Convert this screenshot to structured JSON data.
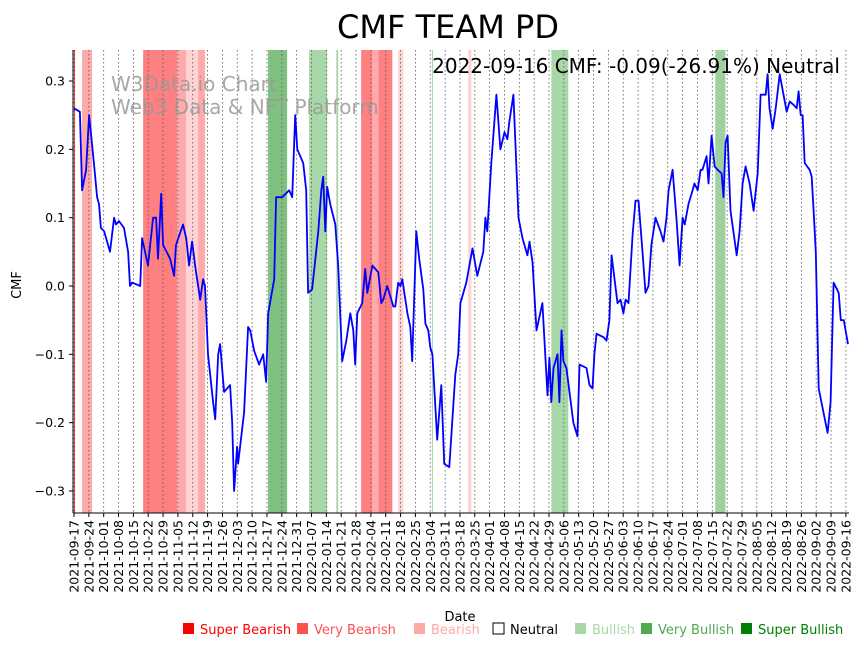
{
  "chart_data": {
    "type": "line",
    "title": "CMF TEAM PD",
    "xlabel": "Date",
    "ylabel": "CMF",
    "ylim": [
      -0.335,
      0.345
    ],
    "xlim_days": [
      0,
      365
    ],
    "start_date": "2021-09-17",
    "annotation": "2022-09-16 CMF: -0.09(-26.91%) Neutral",
    "watermark": [
      "W3Data.io Chart",
      "Web3 Data & NFT Platform"
    ],
    "yticks": [
      0.3,
      0.2,
      0.1,
      0.0,
      -0.1,
      -0.2,
      -0.3
    ],
    "ytick_labels": [
      "0.3",
      "0.2",
      "0.1",
      "0.0",
      "−0.1",
      "−0.2",
      "−0.3"
    ],
    "xtick_labels": [
      "2021-09-17",
      "2021-09-24",
      "2021-10-01",
      "2021-10-08",
      "2021-10-15",
      "2021-10-22",
      "2021-10-29",
      "2021-11-05",
      "2021-11-12",
      "2021-11-19",
      "2021-11-26",
      "2021-12-03",
      "2021-12-10",
      "2021-12-17",
      "2021-12-24",
      "2021-12-31",
      "2022-01-07",
      "2022-01-14",
      "2022-01-21",
      "2022-01-28",
      "2022-02-04",
      "2022-02-11",
      "2022-02-18",
      "2022-02-25",
      "2022-03-04",
      "2022-03-11",
      "2022-03-18",
      "2022-03-25",
      "2022-04-01",
      "2022-04-08",
      "2022-04-15",
      "2022-04-22",
      "2022-04-29",
      "2022-05-06",
      "2022-05-13",
      "2022-05-20",
      "2022-05-27",
      "2022-06-03",
      "2022-06-10",
      "2022-06-17",
      "2022-06-24",
      "2022-07-01",
      "2022-07-08",
      "2022-07-15",
      "2022-07-22",
      "2022-07-29",
      "2022-08-05",
      "2022-08-12",
      "2022-08-19",
      "2022-08-26",
      "2022-09-02",
      "2022-09-09",
      "2022-09-16"
    ],
    "line_color": "#0000ff",
    "series": [
      {
        "name": "CMF",
        "points": [
          [
            0,
            0.26
          ],
          [
            2.8,
            0.255
          ],
          [
            3.8,
            0.14
          ],
          [
            5.7,
            0.17
          ],
          [
            7.1,
            0.25
          ],
          [
            9.4,
            0.18
          ],
          [
            10.9,
            0.13
          ],
          [
            11.8,
            0.12
          ],
          [
            12.7,
            0.085
          ],
          [
            14.2,
            0.08
          ],
          [
            17,
            0.05
          ],
          [
            18.9,
            0.1
          ],
          [
            19.8,
            0.09
          ],
          [
            21.2,
            0.095
          ],
          [
            23.6,
            0.085
          ],
          [
            25.5,
            0.05
          ],
          [
            26.4,
            0
          ],
          [
            27.4,
            0.005
          ],
          [
            31.2,
            0
          ],
          [
            32.1,
            0.07
          ],
          [
            34.9,
            0.03
          ],
          [
            37.3,
            0.1
          ],
          [
            38.7,
            0.1
          ],
          [
            39.6,
            0.04
          ],
          [
            41.1,
            0.135
          ],
          [
            42,
            0.06
          ],
          [
            45.3,
            0.04
          ],
          [
            47.2,
            0.015
          ],
          [
            48.1,
            0.06
          ],
          [
            51.4,
            0.09
          ],
          [
            52.9,
            0.07
          ],
          [
            54.3,
            0.03
          ],
          [
            55.7,
            0.065
          ],
          [
            57.1,
            0.03
          ],
          [
            59.5,
            -0.02
          ],
          [
            60.9,
            0.01
          ],
          [
            61.8,
            0
          ],
          [
            63.2,
            -0.1
          ],
          [
            65.6,
            -0.17
          ],
          [
            66.6,
            -0.195
          ],
          [
            68,
            -0.1
          ],
          [
            68.9,
            -0.085
          ],
          [
            70.8,
            -0.155
          ],
          [
            73.6,
            -0.145
          ],
          [
            74.6,
            -0.2
          ],
          [
            75.5,
            -0.3
          ],
          [
            76.9,
            -0.235
          ],
          [
            77.4,
            -0.26
          ],
          [
            80.2,
            -0.185
          ],
          [
            82.1,
            -0.06
          ],
          [
            83.1,
            -0.065
          ],
          [
            85,
            -0.095
          ],
          [
            87.3,
            -0.115
          ],
          [
            89.2,
            -0.1
          ],
          [
            90.6,
            -0.14
          ],
          [
            91.6,
            -0.04
          ],
          [
            94.4,
            0.01
          ],
          [
            95.3,
            0.13
          ],
          [
            98.2,
            0.13
          ],
          [
            101.5,
            0.14
          ],
          [
            102.9,
            0.13
          ],
          [
            104.3,
            0.25
          ],
          [
            105.3,
            0.2
          ],
          [
            108.1,
            0.18
          ],
          [
            109.5,
            0.14
          ],
          [
            110.4,
            -0.01
          ],
          [
            112.3,
            -0.005
          ],
          [
            115.2,
            0.08
          ],
          [
            116.6,
            0.14
          ],
          [
            117.5,
            0.16
          ],
          [
            118.5,
            0.08
          ],
          [
            119.4,
            0.145
          ],
          [
            120.8,
            0.12
          ],
          [
            123.2,
            0.09
          ],
          [
            124.6,
            0.03
          ],
          [
            126.5,
            -0.11
          ],
          [
            128.4,
            -0.08
          ],
          [
            130.3,
            -0.04
          ],
          [
            131.7,
            -0.065
          ],
          [
            132.6,
            -0.115
          ],
          [
            133.6,
            -0.04
          ],
          [
            135.9,
            -0.025
          ],
          [
            137.3,
            0.025
          ],
          [
            138.3,
            -0.01
          ],
          [
            140.7,
            0.03
          ],
          [
            143.5,
            0.02
          ],
          [
            144.9,
            -0.025
          ],
          [
            145.8,
            -0.02
          ],
          [
            147.7,
            0
          ],
          [
            150.6,
            -0.03
          ],
          [
            151.5,
            -0.03
          ],
          [
            152.9,
            0.005
          ],
          [
            153.9,
            0
          ],
          [
            154.8,
            0.01
          ],
          [
            157.2,
            -0.04
          ],
          [
            158.6,
            -0.06
          ],
          [
            159.5,
            -0.11
          ],
          [
            161.4,
            0.08
          ],
          [
            162.8,
            0.04
          ],
          [
            164.7,
            -0.005
          ],
          [
            165.7,
            -0.055
          ],
          [
            167.1,
            -0.065
          ],
          [
            168,
            -0.09
          ],
          [
            169,
            -0.1
          ],
          [
            171.3,
            -0.225
          ],
          [
            173.2,
            -0.145
          ],
          [
            174.6,
            -0.26
          ],
          [
            177,
            -0.265
          ],
          [
            179.8,
            -0.13
          ],
          [
            181.2,
            -0.1
          ],
          [
            182.2,
            -0.025
          ],
          [
            185,
            0.005
          ],
          [
            187.9,
            0.055
          ],
          [
            190.2,
            0.015
          ],
          [
            193,
            0.05
          ],
          [
            194,
            0.1
          ],
          [
            194.9,
            0.08
          ],
          [
            196.8,
            0.18
          ],
          [
            199.2,
            0.28
          ],
          [
            201.1,
            0.2
          ],
          [
            203,
            0.225
          ],
          [
            204.4,
            0.215
          ],
          [
            205.3,
            0.24
          ],
          [
            207.2,
            0.28
          ],
          [
            209.6,
            0.1
          ],
          [
            211.5,
            0.07
          ],
          [
            213.8,
            0.045
          ],
          [
            214.8,
            0.065
          ],
          [
            216.2,
            0.035
          ],
          [
            218.1,
            -0.065
          ],
          [
            220.9,
            -0.025
          ],
          [
            223.3,
            -0.16
          ],
          [
            224.2,
            -0.105
          ],
          [
            225.1,
            -0.17
          ],
          [
            226.1,
            -0.12
          ],
          [
            228,
            -0.1
          ],
          [
            228.9,
            -0.17
          ],
          [
            229.9,
            -0.065
          ],
          [
            230.8,
            -0.11
          ],
          [
            232.2,
            -0.12
          ],
          [
            235.5,
            -0.2
          ],
          [
            237.4,
            -0.22
          ],
          [
            238.4,
            -0.115
          ],
          [
            241.7,
            -0.12
          ],
          [
            243.1,
            -0.145
          ],
          [
            244.5,
            -0.15
          ],
          [
            245.4,
            -0.1
          ],
          [
            246.4,
            -0.07
          ],
          [
            249.7,
            -0.075
          ],
          [
            251.1,
            -0.08
          ],
          [
            252.5,
            -0.05
          ],
          [
            253.5,
            0.045
          ],
          [
            256.3,
            -0.025
          ],
          [
            257.7,
            -0.02
          ],
          [
            259.1,
            -0.04
          ],
          [
            260.1,
            -0.02
          ],
          [
            261.5,
            -0.025
          ],
          [
            263.4,
            0.075
          ],
          [
            264.8,
            0.125
          ],
          [
            266.2,
            0.125
          ],
          [
            268.1,
            0.05
          ],
          [
            269.5,
            -0.01
          ],
          [
            270.9,
            0
          ],
          [
            272.3,
            0.06
          ],
          [
            274.2,
            0.1
          ],
          [
            276.6,
            0.08
          ],
          [
            278,
            0.065
          ],
          [
            279.4,
            0.1
          ],
          [
            280.4,
            0.14
          ],
          [
            282.3,
            0.17
          ],
          [
            284.1,
            0.1
          ],
          [
            285.6,
            0.03
          ],
          [
            287,
            0.1
          ],
          [
            288,
            0.09
          ],
          [
            289.8,
            0.12
          ],
          [
            291.7,
            0.14
          ],
          [
            292.6,
            0.15
          ],
          [
            294.1,
            0.14
          ],
          [
            295.5,
            0.17
          ],
          [
            296.4,
            0.17
          ],
          [
            298.3,
            0.19
          ],
          [
            299.2,
            0.15
          ],
          [
            300.7,
            0.22
          ],
          [
            302.1,
            0.175
          ],
          [
            303.5,
            0.17
          ],
          [
            305.4,
            0.165
          ],
          [
            306.3,
            0.13
          ],
          [
            307.3,
            0.21
          ],
          [
            308.2,
            0.22
          ],
          [
            309.6,
            0.11
          ],
          [
            312.5,
            0.045
          ],
          [
            313.9,
            0.08
          ],
          [
            315.3,
            0.15
          ],
          [
            316.7,
            0.175
          ],
          [
            318.6,
            0.15
          ],
          [
            320.5,
            0.11
          ],
          [
            322.4,
            0.165
          ],
          [
            323.8,
            0.28
          ],
          [
            326.2,
            0.28
          ],
          [
            327.1,
            0.31
          ],
          [
            328,
            0.26
          ],
          [
            329.5,
            0.23
          ],
          [
            330.9,
            0.26
          ],
          [
            332.8,
            0.31
          ],
          [
            334.6,
            0.28
          ],
          [
            336.1,
            0.255
          ],
          [
            337.5,
            0.27
          ],
          [
            339.4,
            0.265
          ],
          [
            340.8,
            0.26
          ],
          [
            341.7,
            0.285
          ],
          [
            342.7,
            0.25
          ],
          [
            343.6,
            0.25
          ],
          [
            344.6,
            0.18
          ],
          [
            346.9,
            0.17
          ],
          [
            347.9,
            0.16
          ],
          [
            348.8,
            0.11
          ],
          [
            349.8,
            0.05
          ],
          [
            351.2,
            -0.15
          ],
          [
            353.1,
            -0.18
          ],
          [
            355.4,
            -0.215
          ],
          [
            356.8,
            -0.17
          ],
          [
            358.2,
            0.005
          ],
          [
            360.6,
            -0.01
          ],
          [
            361.6,
            -0.05
          ],
          [
            363,
            -0.05
          ],
          [
            365,
            -0.085
          ]
        ]
      }
    ],
    "bands": [
      {
        "level": "super_bearish",
        "from": 0,
        "to": 0.5
      },
      {
        "level": "bearish",
        "from": 3.8,
        "to": 8.5
      },
      {
        "level": "very_bearish",
        "from": 32.6,
        "to": 48.6
      },
      {
        "level": "bearish",
        "from": 48.6,
        "to": 52.9
      },
      {
        "level": "bearish_pale",
        "from": 52.9,
        "to": 58.5
      },
      {
        "level": "bearish",
        "from": 58.5,
        "to": 61.8
      },
      {
        "level": "very_bullish",
        "from": 91.5,
        "to": 100.5
      },
      {
        "level": "bullish",
        "from": 110.9,
        "to": 119.4
      },
      {
        "level": "bullish",
        "from": 123.7,
        "to": 124.6
      },
      {
        "level": "very_bearish",
        "from": 135.4,
        "to": 140.7
      },
      {
        "level": "bearish",
        "from": 140.7,
        "to": 143.5
      },
      {
        "level": "very_bearish",
        "from": 143.5,
        "to": 150.1
      },
      {
        "level": "bearish_pale",
        "from": 152.9,
        "to": 155.3
      },
      {
        "level": "bullish",
        "from": 168.8,
        "to": 169.3
      },
      {
        "level": "bearish_pale",
        "from": 185.9,
        "to": 187.4
      },
      {
        "level": "bullish",
        "from": 225.1,
        "to": 233.1
      },
      {
        "level": "bullish_mid",
        "from": 302.4,
        "to": 307.2
      }
    ],
    "band_colors": {
      "super_bearish": "#ff4040",
      "very_bearish": "#ff8080",
      "bearish": "#ffaaaa",
      "bearish_pale": "#ffd3d3",
      "bullish": "#a8d8a8",
      "bullish_mid": "#9fd09f",
      "very_bullish": "#80c080",
      "super_bullish": "#008000"
    },
    "legend": {
      "placement": "bottom",
      "items": [
        {
          "label": "Super Bearish",
          "color": "#ff0000",
          "text_color": "#ff0000"
        },
        {
          "label": "Very Bearish",
          "color": "#ff5050",
          "text_color": "#ff5050"
        },
        {
          "label": "Bearish",
          "color": "#ffa8a8",
          "text_color": "#ffa8a8"
        },
        {
          "label": "Neutral",
          "color": "#ffffff",
          "text_color": "#000000"
        },
        {
          "label": "Bullish",
          "color": "#a8d8a8",
          "text_color": "#a8d8a8"
        },
        {
          "label": "Very Bullish",
          "color": "#50a850",
          "text_color": "#50a850"
        },
        {
          "label": "Super Bullish",
          "color": "#008000",
          "text_color": "#008000"
        }
      ]
    }
  }
}
